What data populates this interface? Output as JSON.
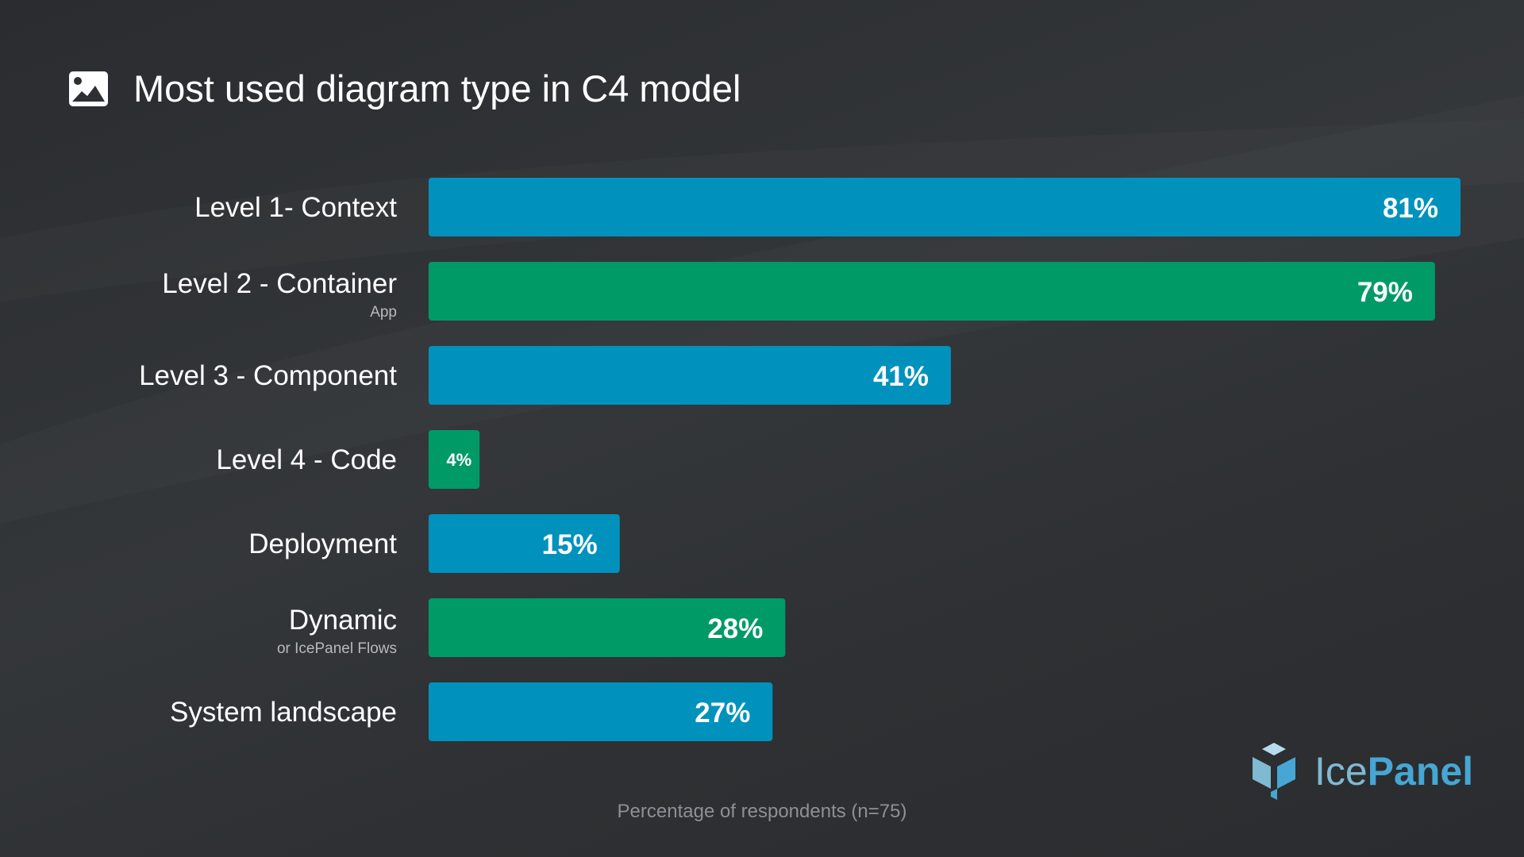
{
  "title": "Most used diagram type in C4 model",
  "chart_data": {
    "type": "bar",
    "orientation": "horizontal",
    "title": "Most used diagram type in C4 model",
    "xlabel": "Percentage of respondents (n=75)",
    "ylabel": "",
    "xlim": [
      0,
      100
    ],
    "unit": "%",
    "categories": [
      "Level 1- Context",
      "Level 2 - Container",
      "Level 3 - Component",
      "Level 4 - Code",
      "Deployment",
      "Dynamic",
      "System landscape"
    ],
    "sublabels": [
      "",
      "App",
      "",
      "",
      "",
      "or IcePanel Flows",
      ""
    ],
    "values": [
      81,
      79,
      41,
      4,
      15,
      28,
      27
    ],
    "value_labels": [
      "81%",
      "79%",
      "41%",
      "4%",
      "15%",
      "28%",
      "27%"
    ],
    "bar_colors": [
      "#0092bd",
      "#009a67",
      "#0092bd",
      "#009a67",
      "#0092bd",
      "#009a67",
      "#0092bd"
    ]
  },
  "logo": {
    "text_light": "Ice",
    "text_bold": "Panel"
  },
  "colors": {
    "background": "#2d2f32",
    "blue": "#0092bd",
    "green": "#009a67",
    "logo_light": "#7fb9d2",
    "logo_dark": "#46a6d4"
  },
  "icons": {
    "title": "image-icon",
    "logo": "icepanel-cube-icon"
  }
}
